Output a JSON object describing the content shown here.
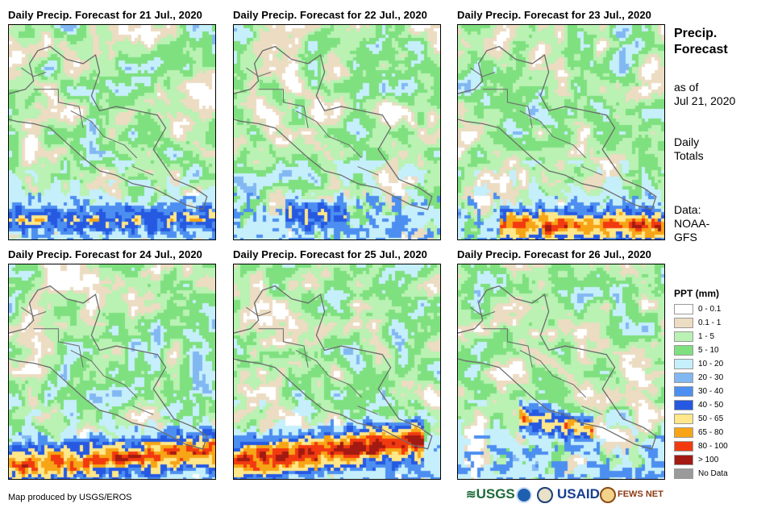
{
  "panels": [
    {
      "title": "Daily Precip. Forecast for 21 Jul., 2020",
      "seed": 21,
      "intensity": 0.55,
      "band_center": 0.9,
      "band_width": 0.07,
      "band_tilt": 0.0,
      "band_xmin": 0.0,
      "band_xmax": 1.0
    },
    {
      "title": "Daily Precip. Forecast for 22 Jul., 2020",
      "seed": 22,
      "intensity": 0.5,
      "band_center": 0.88,
      "band_width": 0.07,
      "band_tilt": 0.0,
      "band_xmin": 0.25,
      "band_xmax": 0.55
    },
    {
      "title": "Daily Precip. Forecast for 23 Jul., 2020",
      "seed": 23,
      "intensity": 0.85,
      "band_center": 0.93,
      "band_width": 0.08,
      "band_tilt": 0.0,
      "band_xmin": 0.2,
      "band_xmax": 1.0
    },
    {
      "title": "Daily Precip. Forecast for 24 Jul., 2020",
      "seed": 24,
      "intensity": 0.85,
      "band_center": 0.9,
      "band_width": 0.09,
      "band_tilt": -0.08,
      "band_xmin": 0.0,
      "band_xmax": 1.0
    },
    {
      "title": "Daily Precip. Forecast for 25 Jul., 2020",
      "seed": 25,
      "intensity": 1.0,
      "band_center": 0.86,
      "band_width": 0.09,
      "band_tilt": -0.1,
      "band_xmin": 0.0,
      "band_xmax": 0.92
    },
    {
      "title": "Daily Precip. Forecast for 26 Jul., 2020",
      "seed": 26,
      "intensity": 0.75,
      "band_center": 0.74,
      "band_width": 0.06,
      "band_tilt": 0.18,
      "band_xmin": 0.3,
      "band_xmax": 0.65
    }
  ],
  "side": {
    "title_line1": "Precip.",
    "title_line2": "Forecast",
    "asof_line1": "as of",
    "asof_line2": "Jul 21, 2020",
    "totals_line1": "Daily",
    "totals_line2": "Totals",
    "data_line1": "Data:",
    "data_line2": "NOAA-",
    "data_line3": "GFS"
  },
  "legend": {
    "title": "PPT (mm)",
    "items": [
      {
        "label": "0 - 0.1",
        "color": "#ffffff"
      },
      {
        "label": "0.1 - 1",
        "color": "#ecdcc2"
      },
      {
        "label": "1 - 5",
        "color": "#b9f2b3"
      },
      {
        "label": "5 - 10",
        "color": "#7fe07f"
      },
      {
        "label": "10 - 20",
        "color": "#c6effc"
      },
      {
        "label": "20 - 30",
        "color": "#82b8f2"
      },
      {
        "label": "30 - 40",
        "color": "#4d8ff0"
      },
      {
        "label": "40 - 50",
        "color": "#2659e2"
      },
      {
        "label": "50 - 65",
        "color": "#ffe78a"
      },
      {
        "label": "65 - 80",
        "color": "#f7a516"
      },
      {
        "label": "80 - 100",
        "color": "#f23a10"
      },
      {
        "label": "> 100",
        "color": "#a31a12"
      },
      {
        "label": "No Data",
        "color": "#9a9a9a"
      }
    ]
  },
  "credit": "Map produced by USGS/EROS",
  "logos": {
    "usgs": "USGS",
    "usaid": "USAID",
    "fewsnet": "FEWS NET"
  },
  "border_color": "#6b6b6b"
}
